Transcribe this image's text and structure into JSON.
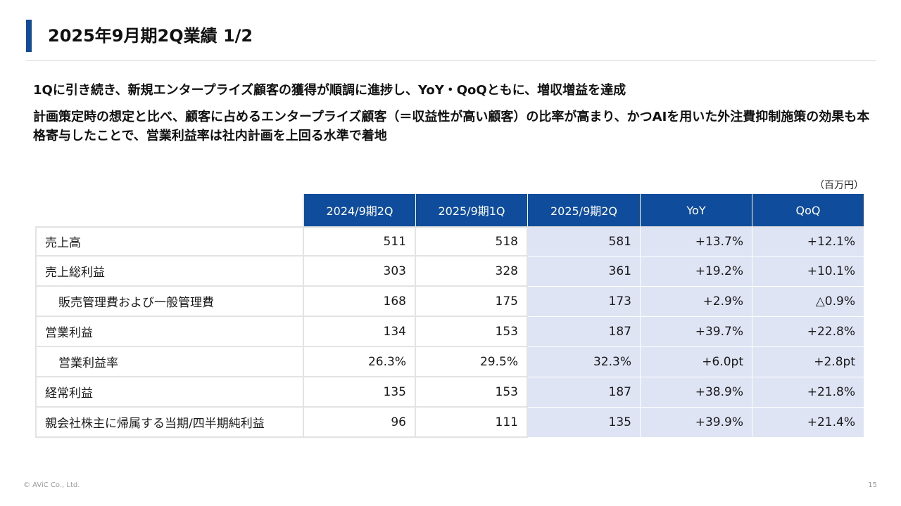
{
  "slide": {
    "title": "2025年9月期2Q業績 1/2",
    "lead1": "1Qに引き続き、新規エンタープライズ顧客の獲得が順調に進捗し、YoY・QoQともに、増収増益を達成",
    "lead2": "計画策定時の想定と比べ、顧客に占めるエンタープライズ顧客（＝収益性が高い顧客）の比率が高まり、かつAIを用いた外注費抑制施策の効果も本格寄与したことで、営業利益率は社内計画を上回る水準で着地",
    "unit": "（百万円）",
    "copyright": "© AViC Co., Ltd.",
    "page_number": "15",
    "accent_color": "#0f4c9c",
    "highlight_color": "#dfe4f5"
  },
  "table": {
    "headers": [
      "2024/9期2Q",
      "2025/9期1Q",
      "2025/9期2Q",
      "YoY",
      "QoQ"
    ],
    "rows": [
      {
        "label": "売上高",
        "values": [
          "511",
          "518",
          "581",
          "+13.7%",
          "+12.1%"
        ]
      },
      {
        "label": "売上総利益",
        "values": [
          "303",
          "328",
          "361",
          "+19.2%",
          "+10.1%"
        ]
      },
      {
        "label": "販売管理費および一般管理費",
        "values": [
          "168",
          "175",
          "173",
          "+2.9%",
          "△0.9%"
        ]
      },
      {
        "label": "営業利益",
        "values": [
          "134",
          "153",
          "187",
          "+39.7%",
          "+22.8%"
        ]
      },
      {
        "label": "営業利益率",
        "values": [
          "26.3%",
          "29.5%",
          "32.3%",
          "+6.0pt",
          "+2.8pt"
        ]
      },
      {
        "label": "経常利益",
        "values": [
          "135",
          "153",
          "187",
          "+38.9%",
          "+21.8%"
        ]
      },
      {
        "label": "親会社株主に帰属する当期/四半期純利益",
        "values": [
          "96",
          "111",
          "135",
          "+39.9%",
          "+21.4%"
        ]
      }
    ]
  }
}
